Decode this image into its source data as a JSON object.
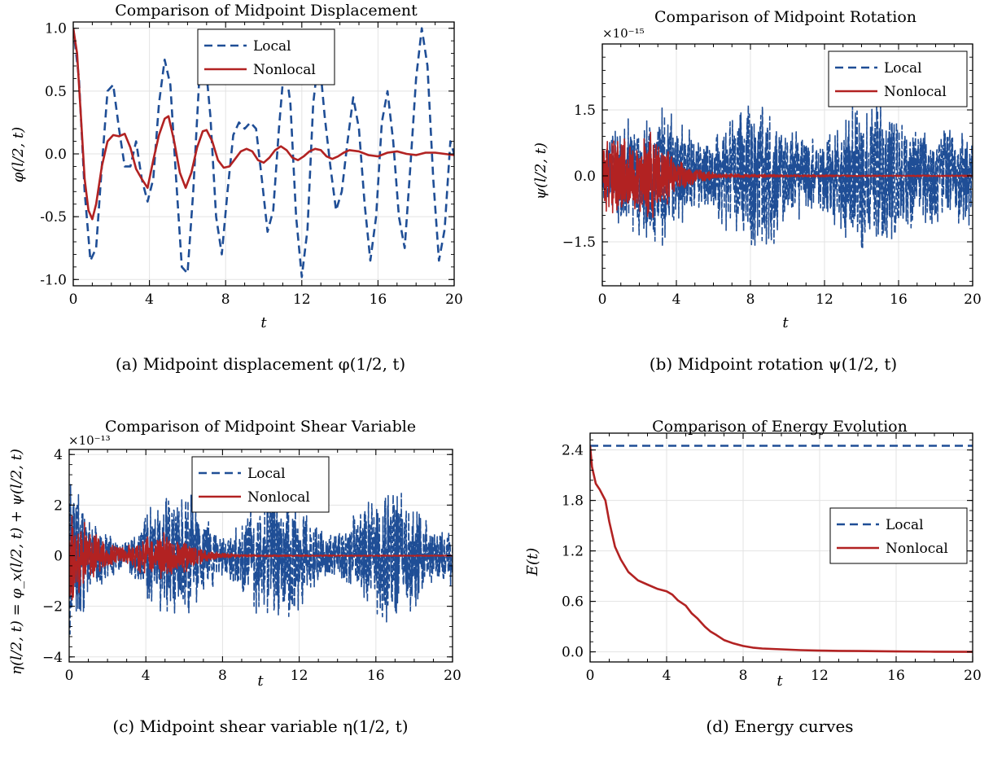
{
  "chart_data": [
    {
      "id": "a",
      "type": "line",
      "title": "Comparison of Midpoint Displacement",
      "xlabel": "t",
      "ylabel": "φ(l/2, t)",
      "caption": "(a) Midpoint displacement φ(1/2, t)",
      "xlim": [
        0,
        20
      ],
      "ylim": [
        -1.05,
        1.05
      ],
      "xticks": [
        0,
        4,
        8,
        12,
        16,
        20
      ],
      "xtick_labels": [
        "0",
        "4",
        "8",
        "12",
        "16",
        "20"
      ],
      "yticks": [
        -1.0,
        -0.5,
        0.0,
        0.5,
        1.0
      ],
      "ytick_labels": [
        "-1.0",
        "-0.5",
        "0.0",
        "0.5",
        "1.0"
      ],
      "multiplier": "",
      "grid": true,
      "legend_position": "top-center",
      "series": [
        {
          "name": "Local",
          "style": "dashed",
          "color": "#1f4e96",
          "x": [
            0,
            0.3,
            0.6,
            0.9,
            1.2,
            1.5,
            1.8,
            2.1,
            2.4,
            2.7,
            3.0,
            3.3,
            3.6,
            3.9,
            4.2,
            4.5,
            4.8,
            5.1,
            5.4,
            5.7,
            6.0,
            6.3,
            6.6,
            6.9,
            7.2,
            7.5,
            7.8,
            8.1,
            8.4,
            8.7,
            9.0,
            9.3,
            9.6,
            9.9,
            10.2,
            10.5,
            10.8,
            11.1,
            11.4,
            11.7,
            12.0,
            12.3,
            12.6,
            12.9,
            13.2,
            13.5,
            13.8,
            14.1,
            14.4,
            14.7,
            15.0,
            15.3,
            15.6,
            15.9,
            16.2,
            16.5,
            16.8,
            17.1,
            17.4,
            17.7,
            18.0,
            18.3,
            18.6,
            18.9,
            19.2,
            19.5,
            19.8,
            20.0
          ],
          "y": [
            1.0,
            0.6,
            -0.3,
            -0.85,
            -0.75,
            -0.1,
            0.5,
            0.55,
            0.2,
            -0.1,
            -0.1,
            0.1,
            -0.2,
            -0.38,
            -0.2,
            0.4,
            0.75,
            0.55,
            -0.2,
            -0.9,
            -0.95,
            -0.3,
            0.55,
            0.8,
            0.3,
            -0.5,
            -0.8,
            -0.3,
            0.15,
            0.25,
            0.2,
            0.25,
            0.2,
            -0.2,
            -0.62,
            -0.45,
            0.2,
            0.75,
            0.4,
            -0.5,
            -0.98,
            -0.6,
            0.4,
            0.8,
            0.3,
            -0.1,
            -0.45,
            -0.3,
            0.1,
            0.45,
            0.2,
            -0.4,
            -0.85,
            -0.5,
            0.25,
            0.5,
            0.1,
            -0.5,
            -0.75,
            -0.1,
            0.6,
            1.0,
            0.7,
            -0.2,
            -0.85,
            -0.6,
            0.1,
            0.0
          ]
        },
        {
          "name": "Nonlocal",
          "style": "solid",
          "color": "#b22222",
          "x": [
            0,
            0.2,
            0.4,
            0.6,
            0.8,
            1.0,
            1.2,
            1.5,
            1.8,
            2.1,
            2.4,
            2.7,
            3.0,
            3.3,
            3.6,
            3.9,
            4.2,
            4.5,
            4.8,
            5.0,
            5.3,
            5.6,
            5.9,
            6.2,
            6.5,
            6.8,
            7.0,
            7.3,
            7.6,
            7.9,
            8.2,
            8.5,
            8.8,
            9.1,
            9.4,
            9.7,
            10.0,
            10.3,
            10.6,
            10.9,
            11.2,
            11.5,
            11.8,
            12.1,
            12.4,
            12.7,
            13.0,
            13.3,
            13.6,
            13.9,
            14.2,
            14.5,
            15.0,
            15.5,
            16.0,
            16.5,
            17.0,
            17.5,
            18.0,
            18.5,
            19.0,
            19.5,
            20.0
          ],
          "y": [
            1.0,
            0.8,
            0.3,
            -0.2,
            -0.45,
            -0.52,
            -0.4,
            -0.1,
            0.1,
            0.15,
            0.14,
            0.16,
            0.05,
            -0.12,
            -0.2,
            -0.27,
            -0.05,
            0.15,
            0.28,
            0.3,
            0.1,
            -0.15,
            -0.27,
            -0.15,
            0.05,
            0.18,
            0.19,
            0.1,
            -0.05,
            -0.11,
            -0.1,
            -0.04,
            0.02,
            0.04,
            0.02,
            -0.05,
            -0.07,
            -0.03,
            0.03,
            0.06,
            0.03,
            -0.03,
            -0.05,
            -0.02,
            0.02,
            0.04,
            0.03,
            -0.02,
            -0.04,
            -0.02,
            0.01,
            0.03,
            0.02,
            -0.01,
            -0.02,
            0.01,
            0.02,
            0.0,
            -0.01,
            0.01,
            0.01,
            0.0,
            -0.01
          ]
        }
      ]
    },
    {
      "id": "b",
      "type": "line",
      "title": "Comparison of Midpoint Rotation",
      "xlabel": "t",
      "ylabel": "ψ(l/2, t)",
      "caption": "(b) Midpoint rotation ψ(1/2, t)",
      "xlim": [
        0,
        20
      ],
      "ylim": [
        -2.5,
        3.0
      ],
      "xticks": [
        0,
        4,
        8,
        12,
        16,
        20
      ],
      "xtick_labels": [
        "0",
        "4",
        "8",
        "12",
        "16",
        "20"
      ],
      "yticks": [
        -1.5,
        0.0,
        1.5
      ],
      "ytick_labels": [
        "−1.5",
        "0.0",
        "1.5"
      ],
      "multiplier": "×10⁻¹⁵",
      "grid": true,
      "legend_position": "top-right",
      "series": [
        {
          "name": "Local",
          "style": "dashed",
          "color": "#1f4e96",
          "noise_envelope": {
            "x": [
              0,
              0.5,
              1,
              2,
              3,
              4,
              5,
              6,
              7,
              8,
              9,
              10,
              11,
              12,
              13,
              14,
              15,
              16,
              17,
              18,
              19,
              20
            ],
            "amp": [
              0.6,
              1.0,
              1.2,
              1.6,
              1.8,
              1.5,
              1.0,
              1.0,
              1.5,
              1.9,
              1.8,
              1.2,
              1.0,
              1.0,
              1.5,
              1.9,
              1.8,
              1.5,
              1.3,
              1.2,
              1.3,
              1.5
            ]
          }
        },
        {
          "name": "Nonlocal",
          "style": "solid",
          "color": "#b22222",
          "noise_envelope": {
            "x": [
              0,
              0.3,
              1,
              2,
              2.5,
              3,
              4,
              5,
              6,
              7,
              8,
              10,
              14,
              20
            ],
            "amp": [
              0.8,
              1.0,
              0.9,
              1.0,
              1.2,
              0.9,
              0.45,
              0.2,
              0.08,
              0.05,
              0.04,
              0.03,
              0.02,
              0.02
            ]
          }
        }
      ]
    },
    {
      "id": "c",
      "type": "line",
      "title": "Comparison of Midpoint Shear Variable",
      "xlabel": "t",
      "ylabel": "η(l/2, t) = φ_x(l/2, t) + ψ(l/2, t)",
      "caption": "(c) Midpoint shear variable η(1/2, t)",
      "xlim": [
        0,
        20
      ],
      "ylim": [
        -4.2,
        4.2
      ],
      "xticks": [
        0,
        4,
        8,
        12,
        16,
        20
      ],
      "xtick_labels": [
        "0",
        "4",
        "8",
        "12",
        "16",
        "20"
      ],
      "yticks": [
        -4,
        -2,
        0,
        2,
        4
      ],
      "ytick_labels": [
        "−4",
        "−2",
        "0",
        "2",
        "4"
      ],
      "multiplier": "×10⁻¹³",
      "grid": true,
      "legend_position": "top-center",
      "series": [
        {
          "name": "Local",
          "style": "dashed",
          "color": "#1f4e96",
          "noise_envelope": {
            "x": [
              0,
              0.3,
              1,
              2,
              3,
              4,
              5,
              6,
              7,
              8,
              9,
              10,
              11,
              12,
              13,
              14,
              15,
              16,
              17,
              18,
              19,
              20
            ],
            "amp": [
              3.5,
              3.0,
              2.0,
              1.0,
              0.6,
              1.8,
              2.8,
              2.8,
              2.0,
              0.8,
              1.5,
              2.8,
              3.0,
              2.2,
              1.2,
              1.0,
              1.8,
              2.6,
              3.0,
              2.2,
              1.3,
              1.2
            ]
          }
        },
        {
          "name": "Nonlocal",
          "style": "solid",
          "color": "#b22222",
          "noise_envelope": {
            "x": [
              0,
              0.3,
              1,
              2,
              3,
              4,
              5,
              6,
              7,
              8,
              9,
              10,
              14,
              20
            ],
            "amp": [
              2.5,
              2.2,
              1.2,
              0.5,
              0.4,
              0.8,
              1.0,
              0.7,
              0.3,
              0.12,
              0.06,
              0.04,
              0.03,
              0.02
            ]
          }
        }
      ]
    },
    {
      "id": "d",
      "type": "line",
      "title": "Comparison of Energy Evolution",
      "xlabel": "t",
      "ylabel": "E(t)",
      "caption": "(d) Energy curves",
      "xlim": [
        0,
        20
      ],
      "ylim": [
        -0.12,
        2.6
      ],
      "xticks": [
        0,
        4,
        8,
        12,
        16,
        20
      ],
      "xtick_labels": [
        "0",
        "4",
        "8",
        "12",
        "16",
        "20"
      ],
      "yticks": [
        0.0,
        0.6,
        1.2,
        1.8,
        2.4
      ],
      "ytick_labels": [
        "0.0",
        "0.6",
        "1.2",
        "1.8",
        "2.4"
      ],
      "multiplier": "",
      "grid": true,
      "legend_position": "center-right",
      "series": [
        {
          "name": "Local",
          "style": "dashed",
          "color": "#1f4e96",
          "x": [
            0,
            20
          ],
          "y": [
            2.45,
            2.45
          ]
        },
        {
          "name": "Nonlocal",
          "style": "solid",
          "color": "#b22222",
          "x": [
            0,
            0.1,
            0.3,
            0.5,
            0.8,
            1.0,
            1.3,
            1.6,
            2.0,
            2.5,
            3.0,
            3.5,
            4.0,
            4.3,
            4.6,
            5.0,
            5.3,
            5.6,
            6.0,
            6.3,
            6.6,
            7.0,
            7.5,
            8.0,
            8.5,
            9.0,
            10.0,
            11.0,
            12.0,
            13.0,
            14.0,
            16.0,
            18.0,
            20.0
          ],
          "y": [
            2.45,
            2.2,
            2.0,
            1.93,
            1.8,
            1.55,
            1.25,
            1.1,
            0.95,
            0.85,
            0.8,
            0.75,
            0.72,
            0.68,
            0.61,
            0.55,
            0.46,
            0.4,
            0.3,
            0.24,
            0.2,
            0.14,
            0.1,
            0.07,
            0.05,
            0.04,
            0.03,
            0.02,
            0.015,
            0.012,
            0.01,
            0.005,
            0.002,
            0.0
          ]
        }
      ]
    }
  ]
}
